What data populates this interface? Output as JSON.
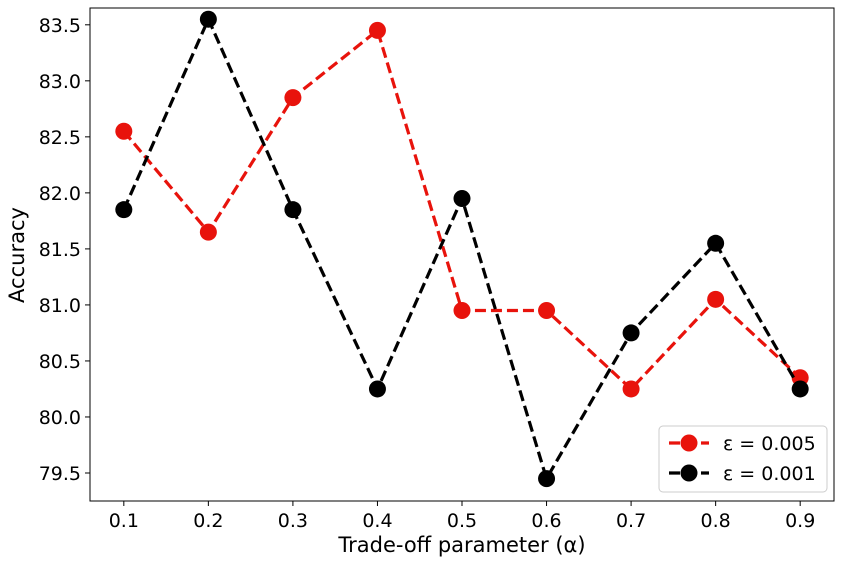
{
  "chart_data": {
    "type": "line",
    "title": "",
    "xlabel": "Trade-off parameter (α)",
    "ylabel": "Accuracy",
    "x": [
      0.1,
      0.2,
      0.3,
      0.4,
      0.5,
      0.6,
      0.7,
      0.8,
      0.9
    ],
    "xlim": [
      0.06,
      0.94
    ],
    "ylim": [
      79.25,
      83.65
    ],
    "xticks": [
      "0.1",
      "0.2",
      "0.3",
      "0.4",
      "0.5",
      "0.6",
      "0.7",
      "0.8",
      "0.9"
    ],
    "yticks": [
      "79.5",
      "80.0",
      "80.5",
      "81.0",
      "81.5",
      "82.0",
      "82.5",
      "83.0",
      "83.5"
    ],
    "grid": false,
    "legend_position": "bottom-right",
    "series": [
      {
        "name": "ε = 0.005",
        "color": "#e8130c",
        "line_style": "dashed",
        "marker": "circle",
        "values": [
          82.55,
          81.65,
          82.85,
          83.45,
          80.95,
          80.95,
          80.25,
          81.05,
          80.35
        ]
      },
      {
        "name": "ε = 0.001",
        "color": "#000000",
        "line_style": "dashed",
        "marker": "circle",
        "values": [
          81.85,
          83.55,
          81.85,
          80.25,
          81.95,
          79.45,
          80.75,
          81.55,
          80.25
        ]
      }
    ]
  }
}
